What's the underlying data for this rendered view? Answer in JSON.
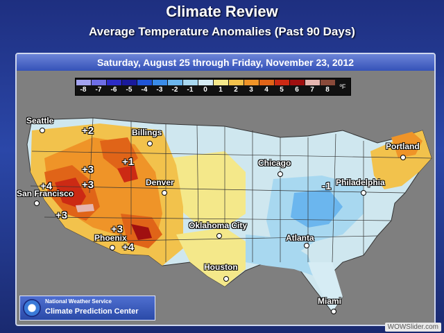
{
  "header": {
    "title": "Climate Review",
    "subtitle": "Average Temperature Anomalies (Past 90 Days)"
  },
  "date_range": "Saturday, August 25 through Friday, November 23, 2012",
  "legend": {
    "unit": "ºF",
    "items": [
      {
        "label": "-8",
        "color": "#a3a3f0"
      },
      {
        "label": "-7",
        "color": "#6e6ee6"
      },
      {
        "label": "-6",
        "color": "#2c2cc8"
      },
      {
        "label": "-5",
        "color": "#1a1a9c"
      },
      {
        "label": "-4",
        "color": "#1f55d8"
      },
      {
        "label": "-3",
        "color": "#3a8ce8"
      },
      {
        "label": "-2",
        "color": "#6bb6ee"
      },
      {
        "label": "-1",
        "color": "#a8d8f0"
      },
      {
        "label": "0",
        "color": "#d6ecf4"
      },
      {
        "label": "1",
        "color": "#f4e88a"
      },
      {
        "label": "2",
        "color": "#f2c24c"
      },
      {
        "label": "3",
        "color": "#ef9428"
      },
      {
        "label": "4",
        "color": "#e06418"
      },
      {
        "label": "5",
        "color": "#cc2a14"
      },
      {
        "label": "6",
        "color": "#a01010"
      },
      {
        "label": "7",
        "color": "#e6b6b0"
      },
      {
        "label": "8",
        "color": "#8a4a3a"
      }
    ]
  },
  "cities": [
    {
      "name": "Seattle"
    },
    {
      "name": "Billings"
    },
    {
      "name": "Portland"
    },
    {
      "name": "Chicago"
    },
    {
      "name": "San Francisco"
    },
    {
      "name": "Denver"
    },
    {
      "name": "Philadelphia"
    },
    {
      "name": "Oklahoma City"
    },
    {
      "name": "Phoenix"
    },
    {
      "name": "Atlanta"
    },
    {
      "name": "Houston"
    },
    {
      "name": "Miami"
    }
  ],
  "anomaly_labels": [
    "+2",
    "+1",
    "+3",
    "+3",
    "+4",
    "+3",
    "+3",
    "+4",
    "-1"
  ],
  "footer": {
    "org_line1": "National Weather Service",
    "org_line2": "Climate Prediction Center",
    "watermark": "WOWSlider.com"
  }
}
